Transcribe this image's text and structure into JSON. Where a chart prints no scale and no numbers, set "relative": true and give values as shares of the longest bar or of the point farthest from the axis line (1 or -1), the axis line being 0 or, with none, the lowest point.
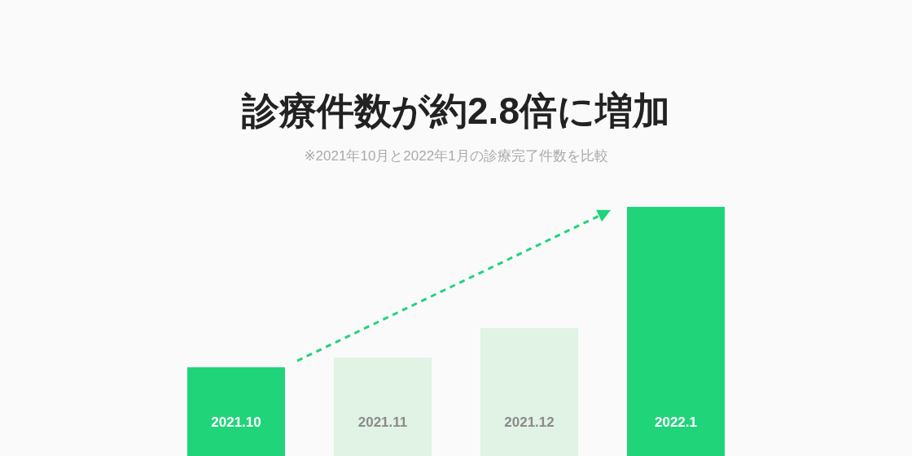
{
  "chart_data": {
    "type": "bar",
    "title": "診療件数が約2.8倍に増加",
    "subtitle": "※2021年10月と2022年1月の診療完了件数を比較",
    "categories": [
      "2021.10",
      "2021.11",
      "2021.12",
      "2022.1"
    ],
    "values": [
      0.356,
      0.395,
      0.513,
      1
    ],
    "colors": [
      "#20d47a",
      "#e0f3e5",
      "#e0f3e5",
      "#20d47a"
    ],
    "relative": true
  }
}
